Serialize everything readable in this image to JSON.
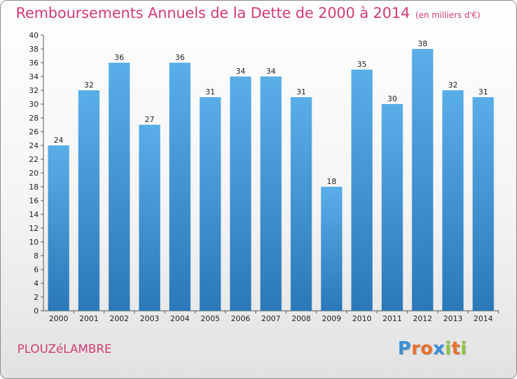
{
  "chart_data": {
    "type": "bar",
    "title": "Remboursements Annuels de la Dette de 2000 à 2014",
    "unit": "(en milliers d'€)",
    "categories": [
      "2000",
      "2001",
      "2002",
      "2003",
      "2004",
      "2005",
      "2006",
      "2007",
      "2008",
      "2009",
      "2010",
      "2011",
      "2012",
      "2013",
      "2014"
    ],
    "values": [
      24,
      32,
      36,
      27,
      36,
      31,
      34,
      34,
      31,
      18,
      35,
      30,
      38,
      32,
      31
    ],
    "ylim": [
      0,
      40
    ],
    "yticks": [
      0,
      2,
      4,
      6,
      8,
      10,
      12,
      14,
      16,
      18,
      20,
      22,
      24,
      26,
      28,
      30,
      32,
      34,
      36,
      38,
      40
    ],
    "xlabel": "",
    "ylabel": "",
    "grid": false,
    "colors": {
      "bar_top": "#5aaee8",
      "bar_bottom": "#2a78b8",
      "title": "#d03b73"
    }
  },
  "footer": {
    "commune": "PLOUZéLAMBRE",
    "logo_letters": [
      {
        "char": "P",
        "color": "#3a8fd6"
      },
      {
        "char": "r",
        "color": "#e8702a"
      },
      {
        "char": "o",
        "color": "#e8702a"
      },
      {
        "char": "x",
        "color": "#3a8fd6"
      },
      {
        "char": "i",
        "color": "#8cc63f"
      },
      {
        "char": "t",
        "color": "#e8702a"
      },
      {
        "char": "i",
        "color": "#8cc63f"
      }
    ]
  }
}
